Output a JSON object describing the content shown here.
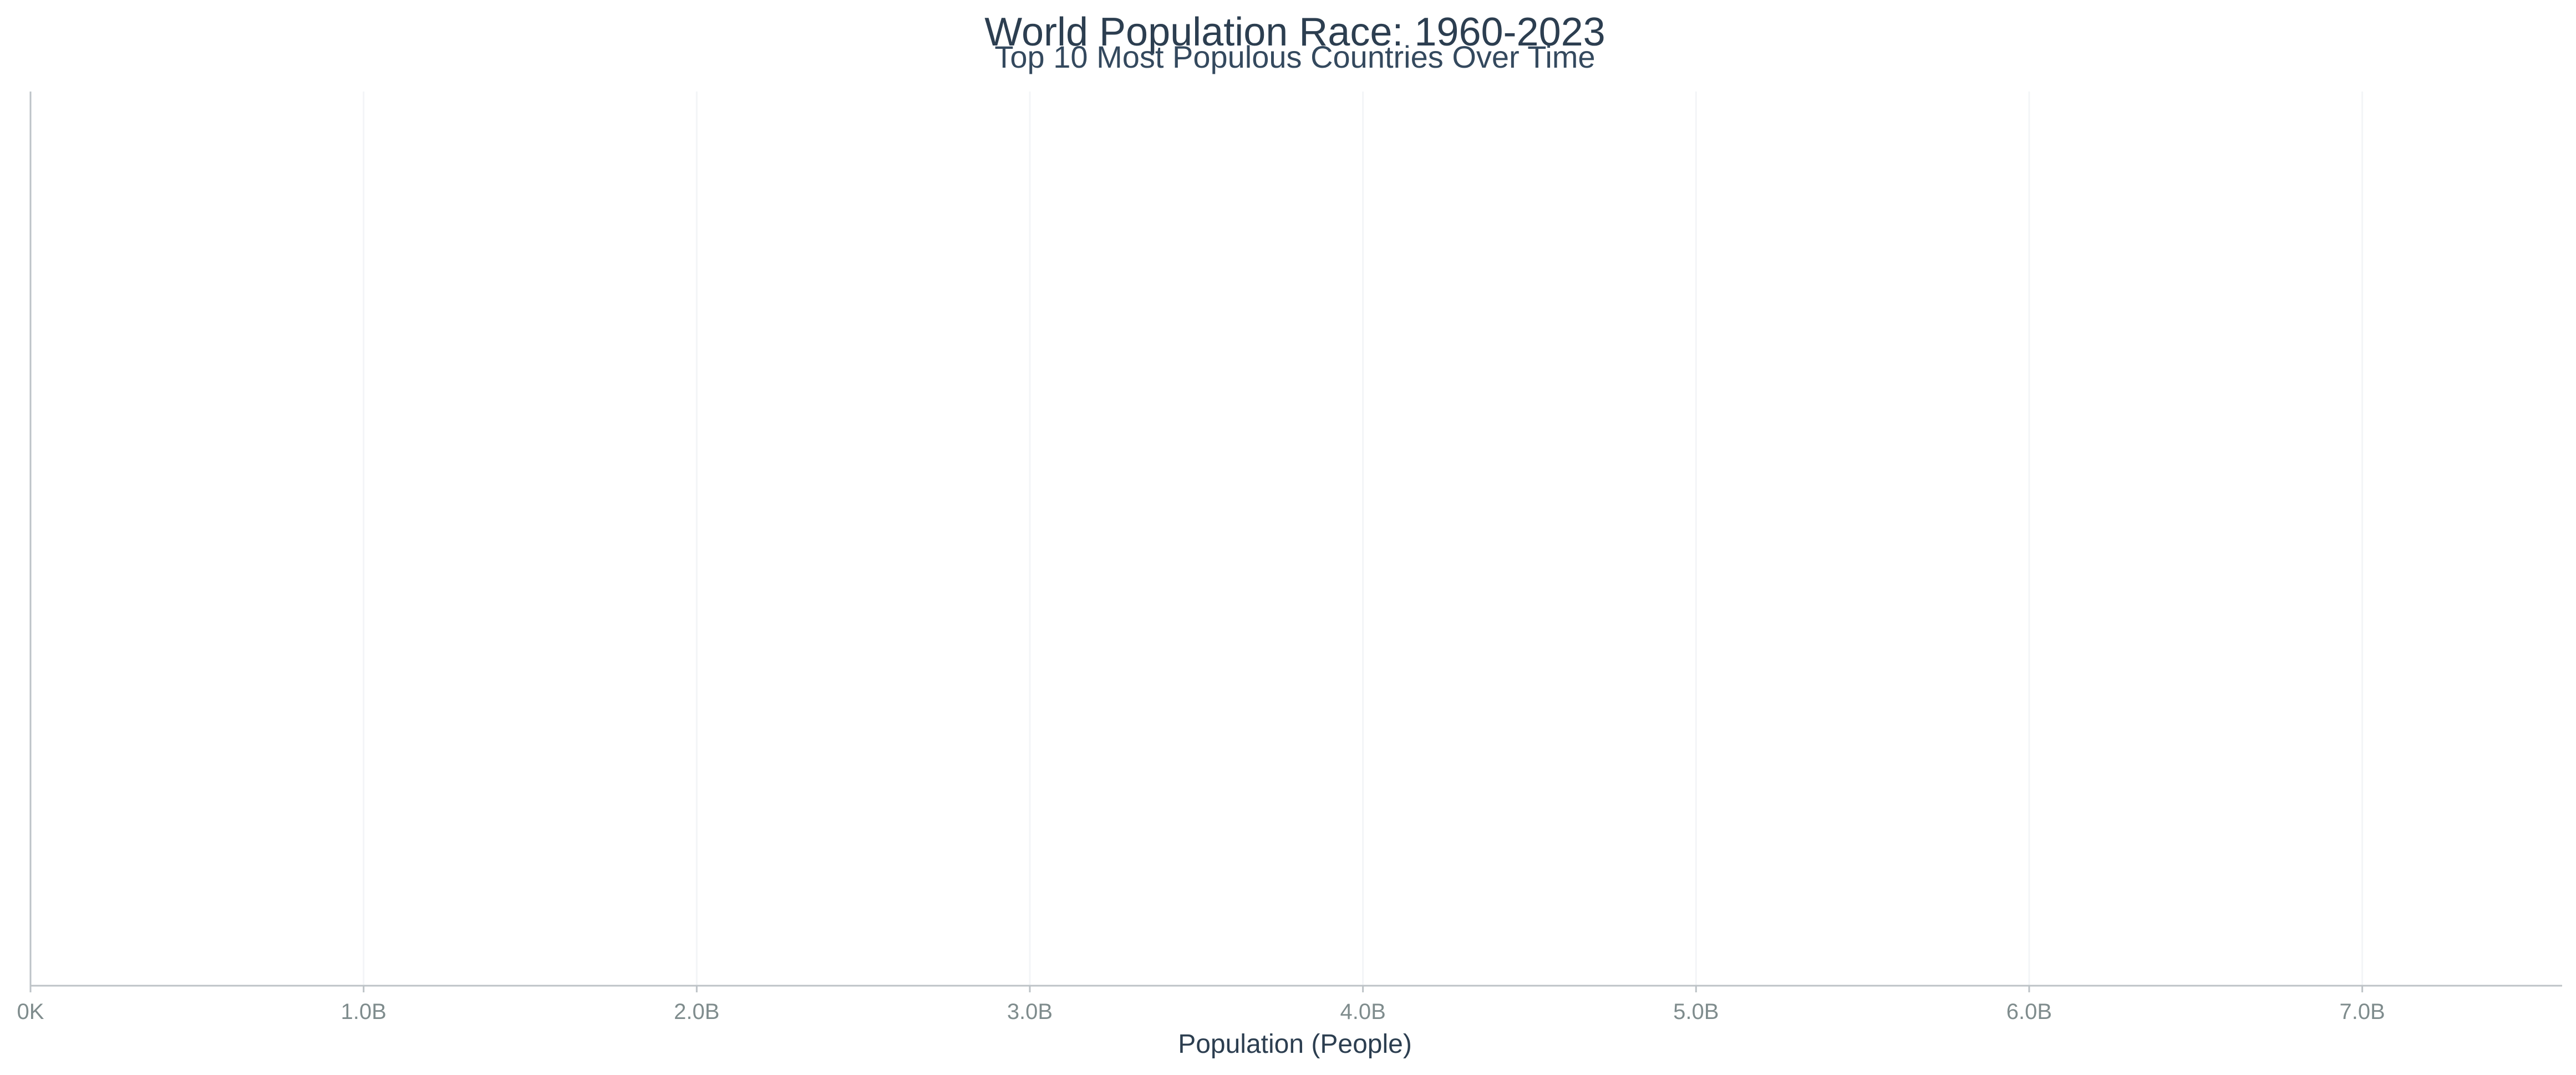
{
  "chart_data": {
    "type": "bar",
    "title": "World Population Race: 1960-2023",
    "subtitle": "Top 10 Most Populous Countries Over Time",
    "xlabel": "Population (People)",
    "ylabel": "",
    "orientation": "horizontal",
    "xlim": [
      0,
      7600000000
    ],
    "x_ticks": [
      {
        "value": 0,
        "label": "0K"
      },
      {
        "value": 1000000000,
        "label": "1.0B"
      },
      {
        "value": 2000000000,
        "label": "2.0B"
      },
      {
        "value": 3000000000,
        "label": "3.0B"
      },
      {
        "value": 4000000000,
        "label": "4.0B"
      },
      {
        "value": 5000000000,
        "label": "5.0B"
      },
      {
        "value": 6000000000,
        "label": "6.0B"
      },
      {
        "value": 7000000000,
        "label": "7.0B"
      }
    ],
    "categories": [],
    "values": [],
    "grid": true,
    "colors": {
      "title": "#2c3e50",
      "subtitle": "#34495e",
      "ticks": "#7f8c8d",
      "axis": "#bdc3c7",
      "grid": "#f3f5f7"
    }
  }
}
